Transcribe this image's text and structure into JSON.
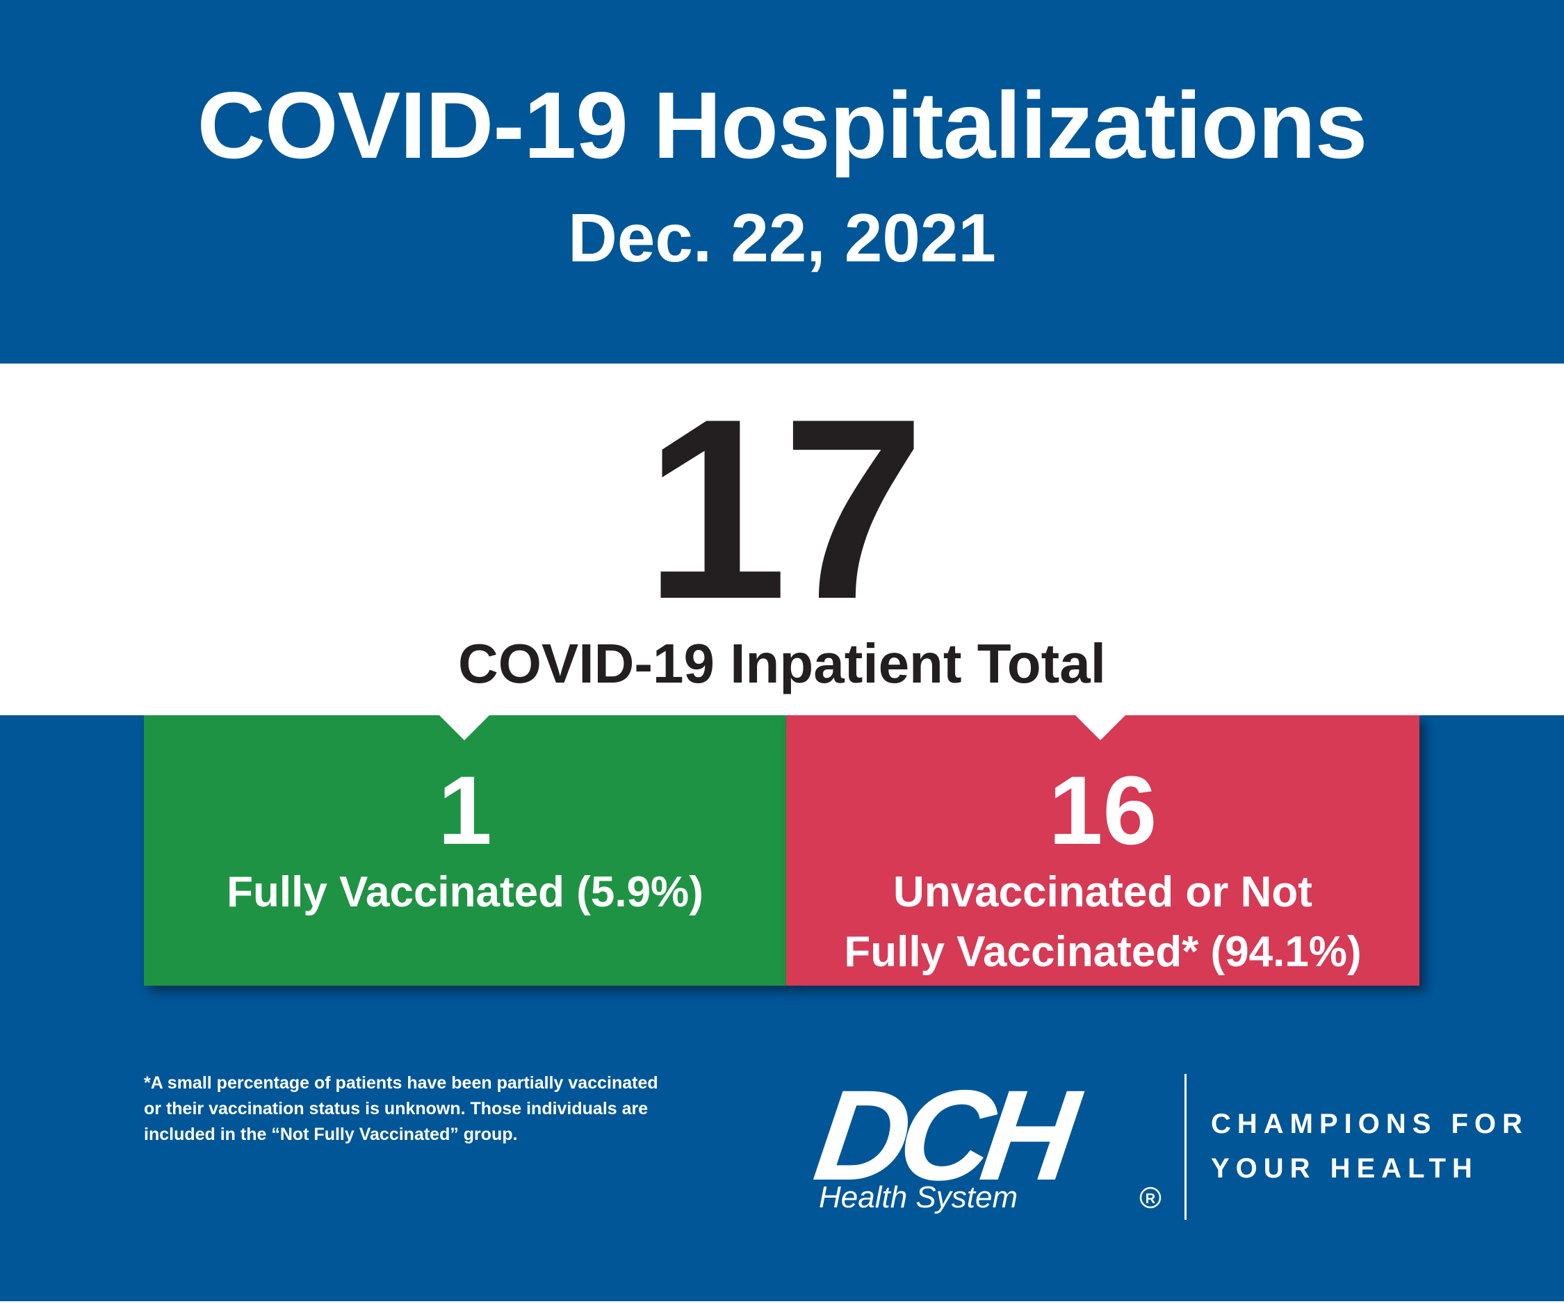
{
  "header": {
    "title": "COVID-19 Hospitalizations",
    "date": "Dec. 22, 2021"
  },
  "total": {
    "value": "17",
    "label": "COVID-19 Inpatient Total"
  },
  "vaccinated": {
    "value": "1",
    "label": "Fully Vaccinated (5.9%)"
  },
  "unvaccinated": {
    "value": "16",
    "label_line1": "Unvaccinated or Not",
    "label_line2": "Fully Vaccinated* (94.1%)"
  },
  "footnote": {
    "line1": "*A small percentage of patients have been partially vaccinated",
    "line2": "or their vaccination status is unknown. Those individuals are",
    "line3": "included in the “Not Fully Vaccinated” group."
  },
  "logo": {
    "letters": "DCH",
    "subtitle": "Health System",
    "registered": "R"
  },
  "tagline": {
    "line1": "CHAMPIONS FOR",
    "line2": "YOUR HEALTH"
  },
  "colors": {
    "background": "#005696",
    "vaccinated": "#1f9344",
    "unvaccinated": "#d63a55",
    "panel": "#ffffff",
    "dark_text": "#231f20"
  }
}
